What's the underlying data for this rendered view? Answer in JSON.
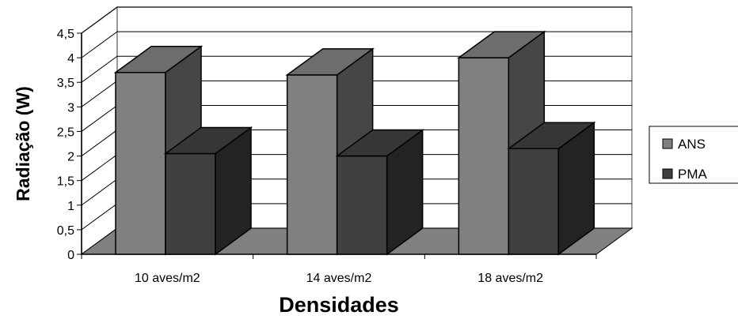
{
  "chart_data": {
    "type": "bar",
    "categories": [
      "10 aves/m2",
      "14 aves/m2",
      "18 aves/m2"
    ],
    "series": [
      {
        "name": "ANS",
        "values": [
          3.7,
          3.65,
          4.0
        ],
        "color": "#808080"
      },
      {
        "name": "PMA",
        "values": [
          2.05,
          2.0,
          2.15
        ],
        "color": "#404040"
      }
    ],
    "xlabel": "Densidades",
    "ylabel": "Radiação (W)",
    "ylim": [
      0,
      4.5
    ],
    "yticks": [
      "0",
      "0,5",
      "1",
      "1,5",
      "2",
      "2,5",
      "3",
      "3,5",
      "4",
      "4,5"
    ],
    "legend_position": "right",
    "grid": true,
    "style": "3d-column"
  }
}
